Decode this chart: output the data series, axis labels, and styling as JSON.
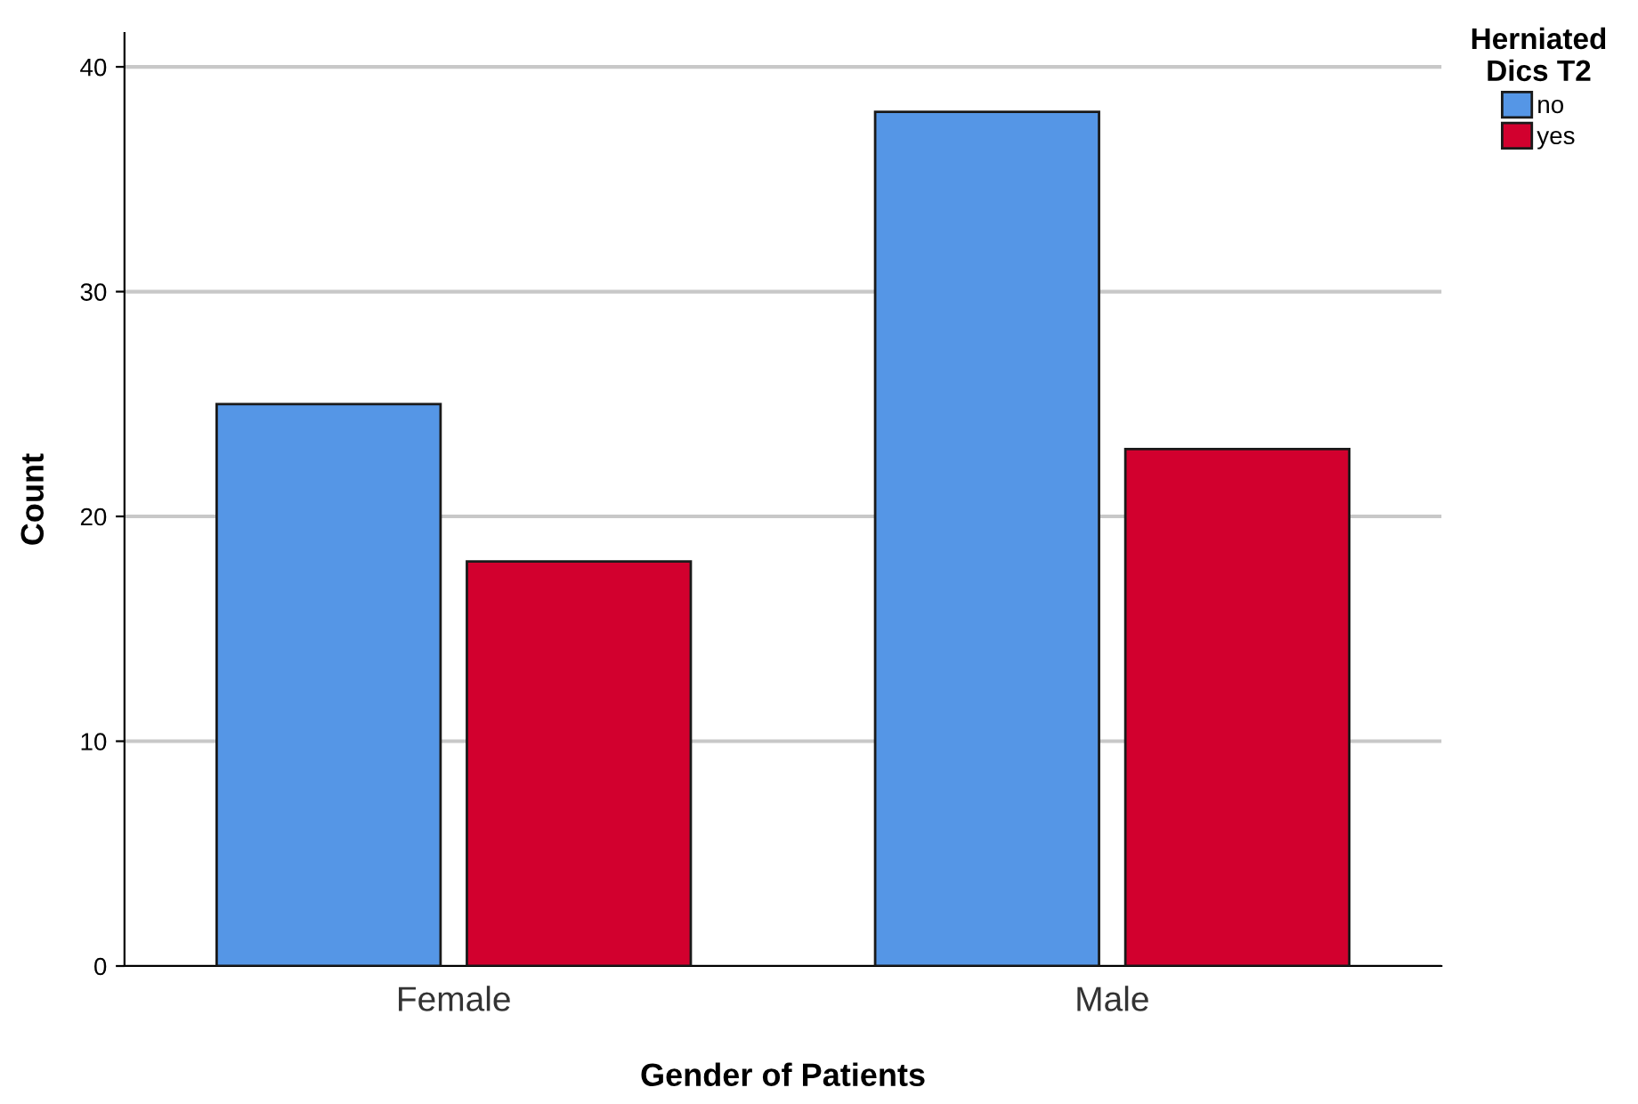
{
  "chart_data": {
    "type": "bar",
    "xlabel": "Gender of Patients",
    "ylabel": "Count",
    "legend_title": "Herniated\nDics T2",
    "categories": [
      "Female",
      "Male"
    ],
    "series": [
      {
        "name": "no",
        "color": "#5596e6",
        "values": [
          25,
          38
        ]
      },
      {
        "name": "yes",
        "color": "#d2002e",
        "values": [
          18,
          23
        ]
      }
    ],
    "ylim": [
      0,
      41.5
    ],
    "yticks": [
      0,
      10,
      20,
      30,
      40
    ],
    "grid": "y",
    "legend": "top right"
  }
}
